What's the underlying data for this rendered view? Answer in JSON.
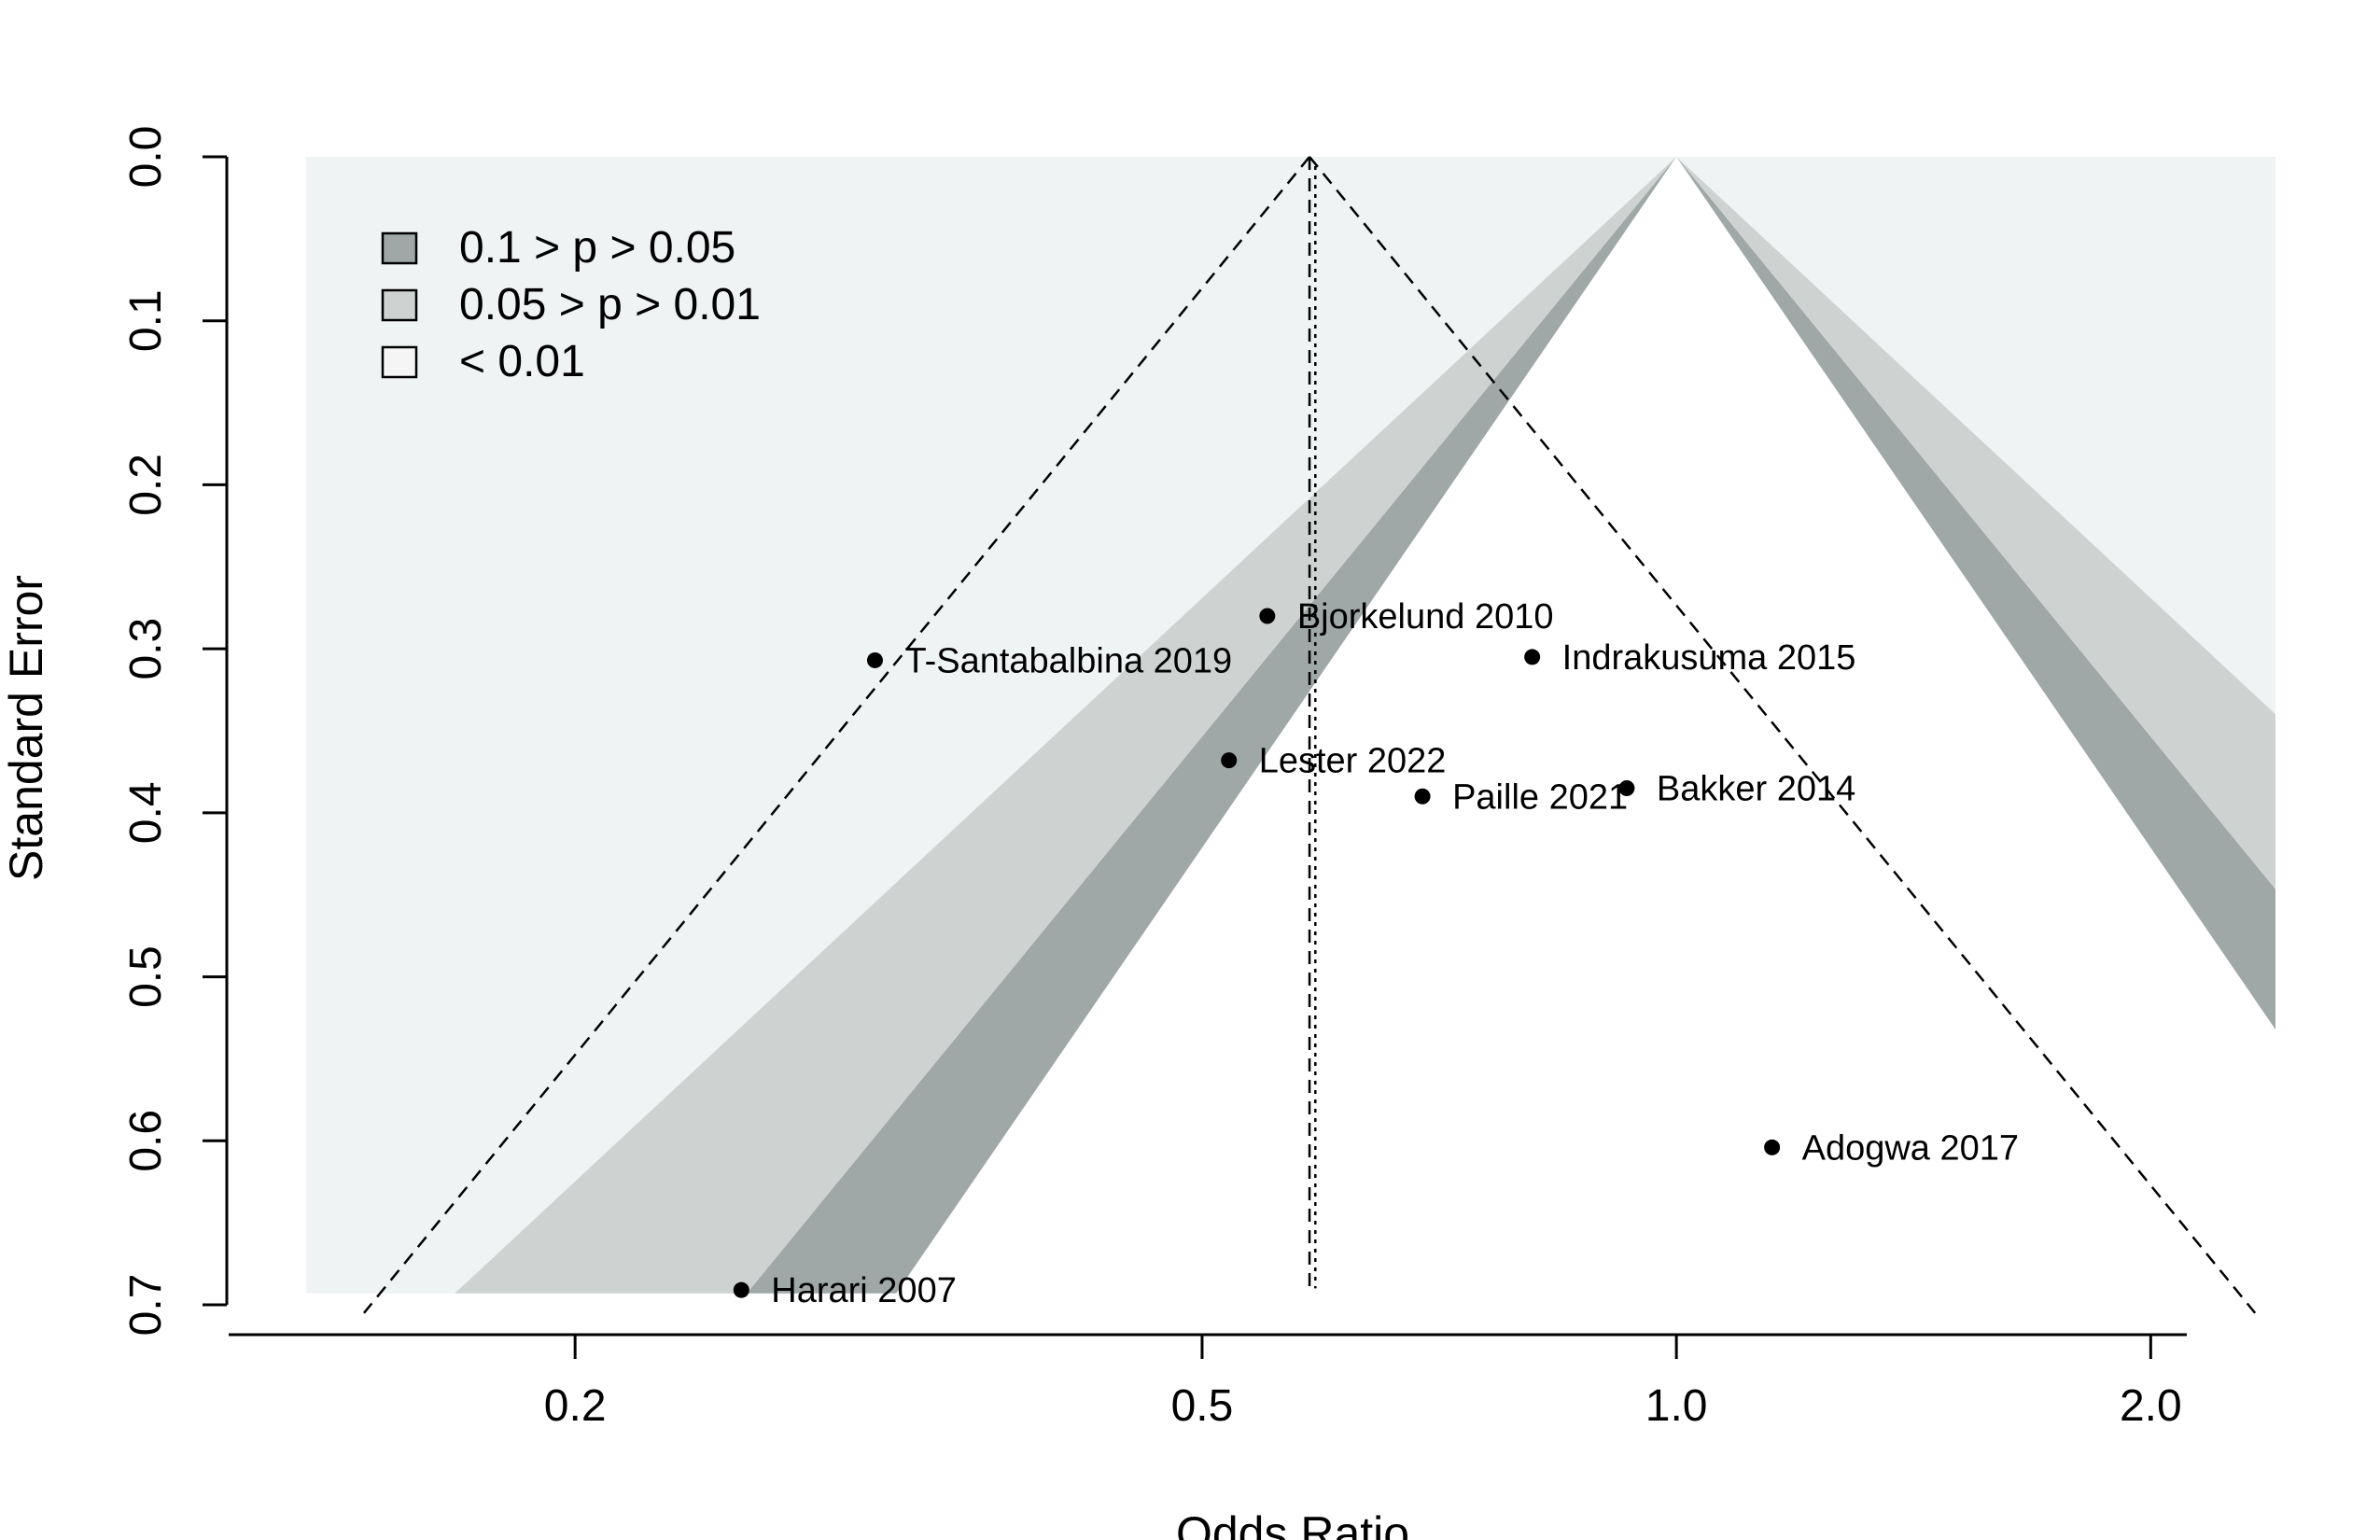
{
  "chart_data": {
    "type": "scatter",
    "subtype": "contour-enhanced funnel plot",
    "xlabel": "Odds Ratio",
    "ylabel": "Standard Error",
    "x_scale": "log",
    "x_range": [
      0.135,
      2.4
    ],
    "x_ticks": [
      {
        "value": 0.2,
        "label": "0.2"
      },
      {
        "value": 0.5,
        "label": "0.5"
      },
      {
        "value": 1.0,
        "label": "1.0"
      },
      {
        "value": 2.0,
        "label": "2.0"
      }
    ],
    "y_range": [
      0.0,
      0.7
    ],
    "y_inverted": true,
    "y_ticks": [
      {
        "value": 0.0,
        "label": "0.0"
      },
      {
        "value": 0.1,
        "label": "0.1"
      },
      {
        "value": 0.2,
        "label": "0.2"
      },
      {
        "value": 0.3,
        "label": "0.3"
      },
      {
        "value": 0.4,
        "label": "0.4"
      },
      {
        "value": 0.5,
        "label": "0.5"
      },
      {
        "value": 0.6,
        "label": "0.6"
      },
      {
        "value": 0.7,
        "label": "0.7"
      }
    ],
    "contour_center_or": 1.0,
    "contour_max_se": 0.693,
    "contours": [
      {
        "label": "0.1 > p > 0.05",
        "z_inner": 1.645,
        "z_outer": 1.96,
        "color": "#9fa8a7"
      },
      {
        "label": "0.05 > p > 0.01",
        "z_inner": 1.96,
        "z_outer": 2.576,
        "color": "#ced3d2"
      },
      {
        "label": "< 0.01",
        "z_inner": 2.576,
        "z_outer": null,
        "color": "#f0f3f4"
      }
    ],
    "legend": {
      "position": "top-left",
      "entries": [
        {
          "label": "0.1 > p > 0.05",
          "color": "#9fa8a7"
        },
        {
          "label": "0.05 > p > 0.01",
          "color": "#ced3d2"
        },
        {
          "label": "< 0.01",
          "color": "#f5f5f5"
        }
      ]
    },
    "pooled_or_fixed": 0.585,
    "pooled_or_random": 0.59,
    "points": [
      {
        "label": "Bjorkelund 2010",
        "x": 0.55,
        "y": 0.28
      },
      {
        "label": "T-Santabalbina 2019",
        "x": 0.31,
        "y": 0.307
      },
      {
        "label": "Indrakusuma 2015",
        "x": 0.81,
        "y": 0.305
      },
      {
        "label": "Lester 2022",
        "x": 0.52,
        "y": 0.368
      },
      {
        "label": "Paille 2021",
        "x": 0.69,
        "y": 0.39
      },
      {
        "label": "Bakker 2014",
        "x": 0.93,
        "y": 0.385
      },
      {
        "label": "Adogwa 2017",
        "x": 1.15,
        "y": 0.604
      },
      {
        "label": "Harari 2007",
        "x": 0.255,
        "y": 0.691
      }
    ]
  }
}
